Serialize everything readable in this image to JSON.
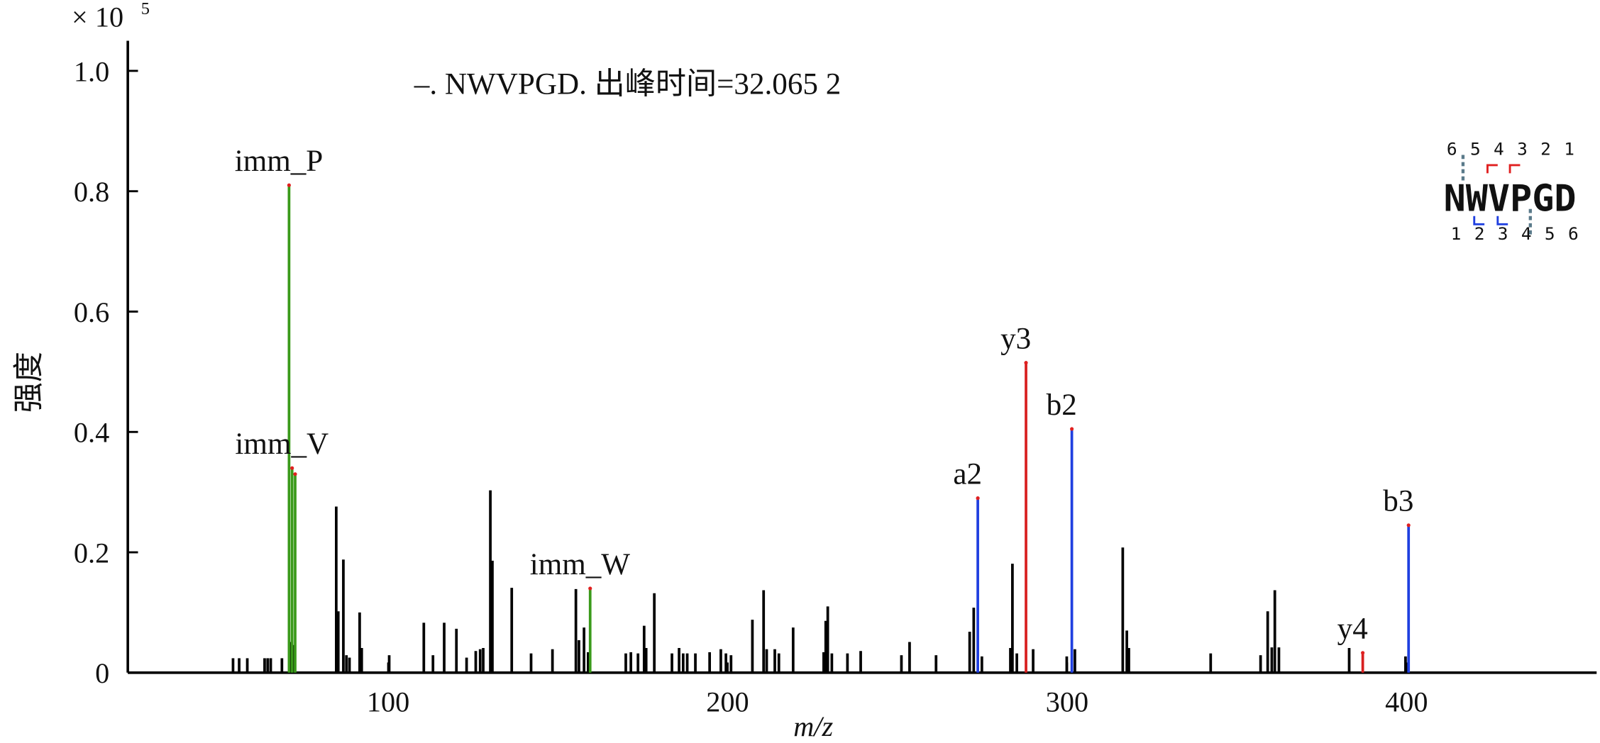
{
  "chart_data": {
    "type": "spectrum",
    "title": "–. NWVPGD. 出峰时间=32.065 2",
    "x_label": "m/z",
    "y_label": "强度",
    "y_scale_base": "× 10",
    "y_scale_exp": "5",
    "xlim": [
      23.3,
      456
    ],
    "ylim": [
      0,
      1.05
    ],
    "xticks": [
      100,
      200,
      300,
      400
    ],
    "yticks": [
      0,
      0.2,
      0.4,
      0.6,
      0.8,
      {
        "value": 1,
        "label": "1.0"
      }
    ],
    "peak_color": "#000000",
    "peaks": {
      "x": [
        54.3,
        56.1,
        58.5,
        63.6,
        64.5,
        65.4,
        68.7,
        71.4,
        72.3,
        84.7,
        85.3,
        86.8,
        87.7,
        88.6,
        91.6,
        92.2,
        100.3,
        110.5,
        113.2,
        116.5,
        120.1,
        123.1,
        125.8,
        127.1,
        128.0,
        130.1,
        130.7,
        136.4,
        142.1,
        148.4,
        155.3,
        156.2,
        157.7,
        158.9,
        170.0,
        171.5,
        173.6,
        175.4,
        176.0,
        178.4,
        183.6,
        185.7,
        186.9,
        188.1,
        190.5,
        194.7,
        198.0,
        199.5,
        201.0,
        207.3,
        210.6,
        211.5,
        213.9,
        215.1,
        219.3,
        228.3,
        228.9,
        229.5,
        230.7,
        235.3,
        239.2,
        251.2,
        253.6,
        261.4,
        271.3,
        272.5,
        274.9,
        283.3,
        283.9,
        285.2,
        290.0,
        299.9,
        302.3,
        316.4,
        317.6,
        318.2,
        342.3,
        357.0,
        359.1,
        360.3,
        361.2,
        362.4,
        383.1,
        399.7
      ],
      "values": [
        0.024,
        0.024,
        0.024,
        0.024,
        0.024,
        0.024,
        0.024,
        0.051,
        0.046,
        0.276,
        0.102,
        0.188,
        0.029,
        0.025,
        0.1,
        0.041,
        0.029,
        0.083,
        0.029,
        0.083,
        0.073,
        0.025,
        0.036,
        0.039,
        0.041,
        0.303,
        0.186,
        0.141,
        0.032,
        0.039,
        0.139,
        0.054,
        0.075,
        0.034,
        0.032,
        0.034,
        0.032,
        0.078,
        0.041,
        0.132,
        0.032,
        0.041,
        0.032,
        0.032,
        0.032,
        0.034,
        0.039,
        0.032,
        0.029,
        0.088,
        0.137,
        0.039,
        0.039,
        0.032,
        0.075,
        0.034,
        0.086,
        0.11,
        0.032,
        0.032,
        0.036,
        0.029,
        0.051,
        0.029,
        0.068,
        0.108,
        0.027,
        0.041,
        0.181,
        0.032,
        0.039,
        0.027,
        0.039,
        0.208,
        0.07,
        0.041,
        0.032,
        0.029,
        0.102,
        0.042,
        0.137,
        0.042,
        0.041,
        0.027
      ]
    },
    "annotated": [
      {
        "label": "imm_P",
        "x": 70.8,
        "value": 0.81,
        "color": "#3a9a1a"
      },
      {
        "label": "imm_V",
        "x": 71.7,
        "value": 0.34,
        "color": "#3a9a1a"
      },
      {
        "label": null,
        "x": 72.6,
        "value": 0.33,
        "color": "#3a9a1a"
      },
      {
        "label": "imm_W",
        "x": 159.5,
        "value": 0.14,
        "color": "#3a9a1a"
      },
      {
        "label": "a2",
        "x": 273.7,
        "value": 0.29,
        "color": "#1f3fe0"
      },
      {
        "label": "y3",
        "x": 287.9,
        "value": 0.515,
        "color": "#d82020"
      },
      {
        "label": "b2",
        "x": 301.4,
        "value": 0.405,
        "color": "#1f3fe0"
      },
      {
        "label": "y4",
        "x": 387.1,
        "value": 0.033,
        "color": "#d82020"
      },
      {
        "label": "b3",
        "x": 400.6,
        "value": 0.245,
        "color": "#1f3fe0"
      }
    ],
    "fragment_map": {
      "sequence": "NWVPGD",
      "top": [
        "6",
        "5",
        "4",
        "3",
        "2",
        "1"
      ],
      "bottom": [
        "1",
        "2",
        "3",
        "4",
        "5",
        "6"
      ]
    }
  }
}
